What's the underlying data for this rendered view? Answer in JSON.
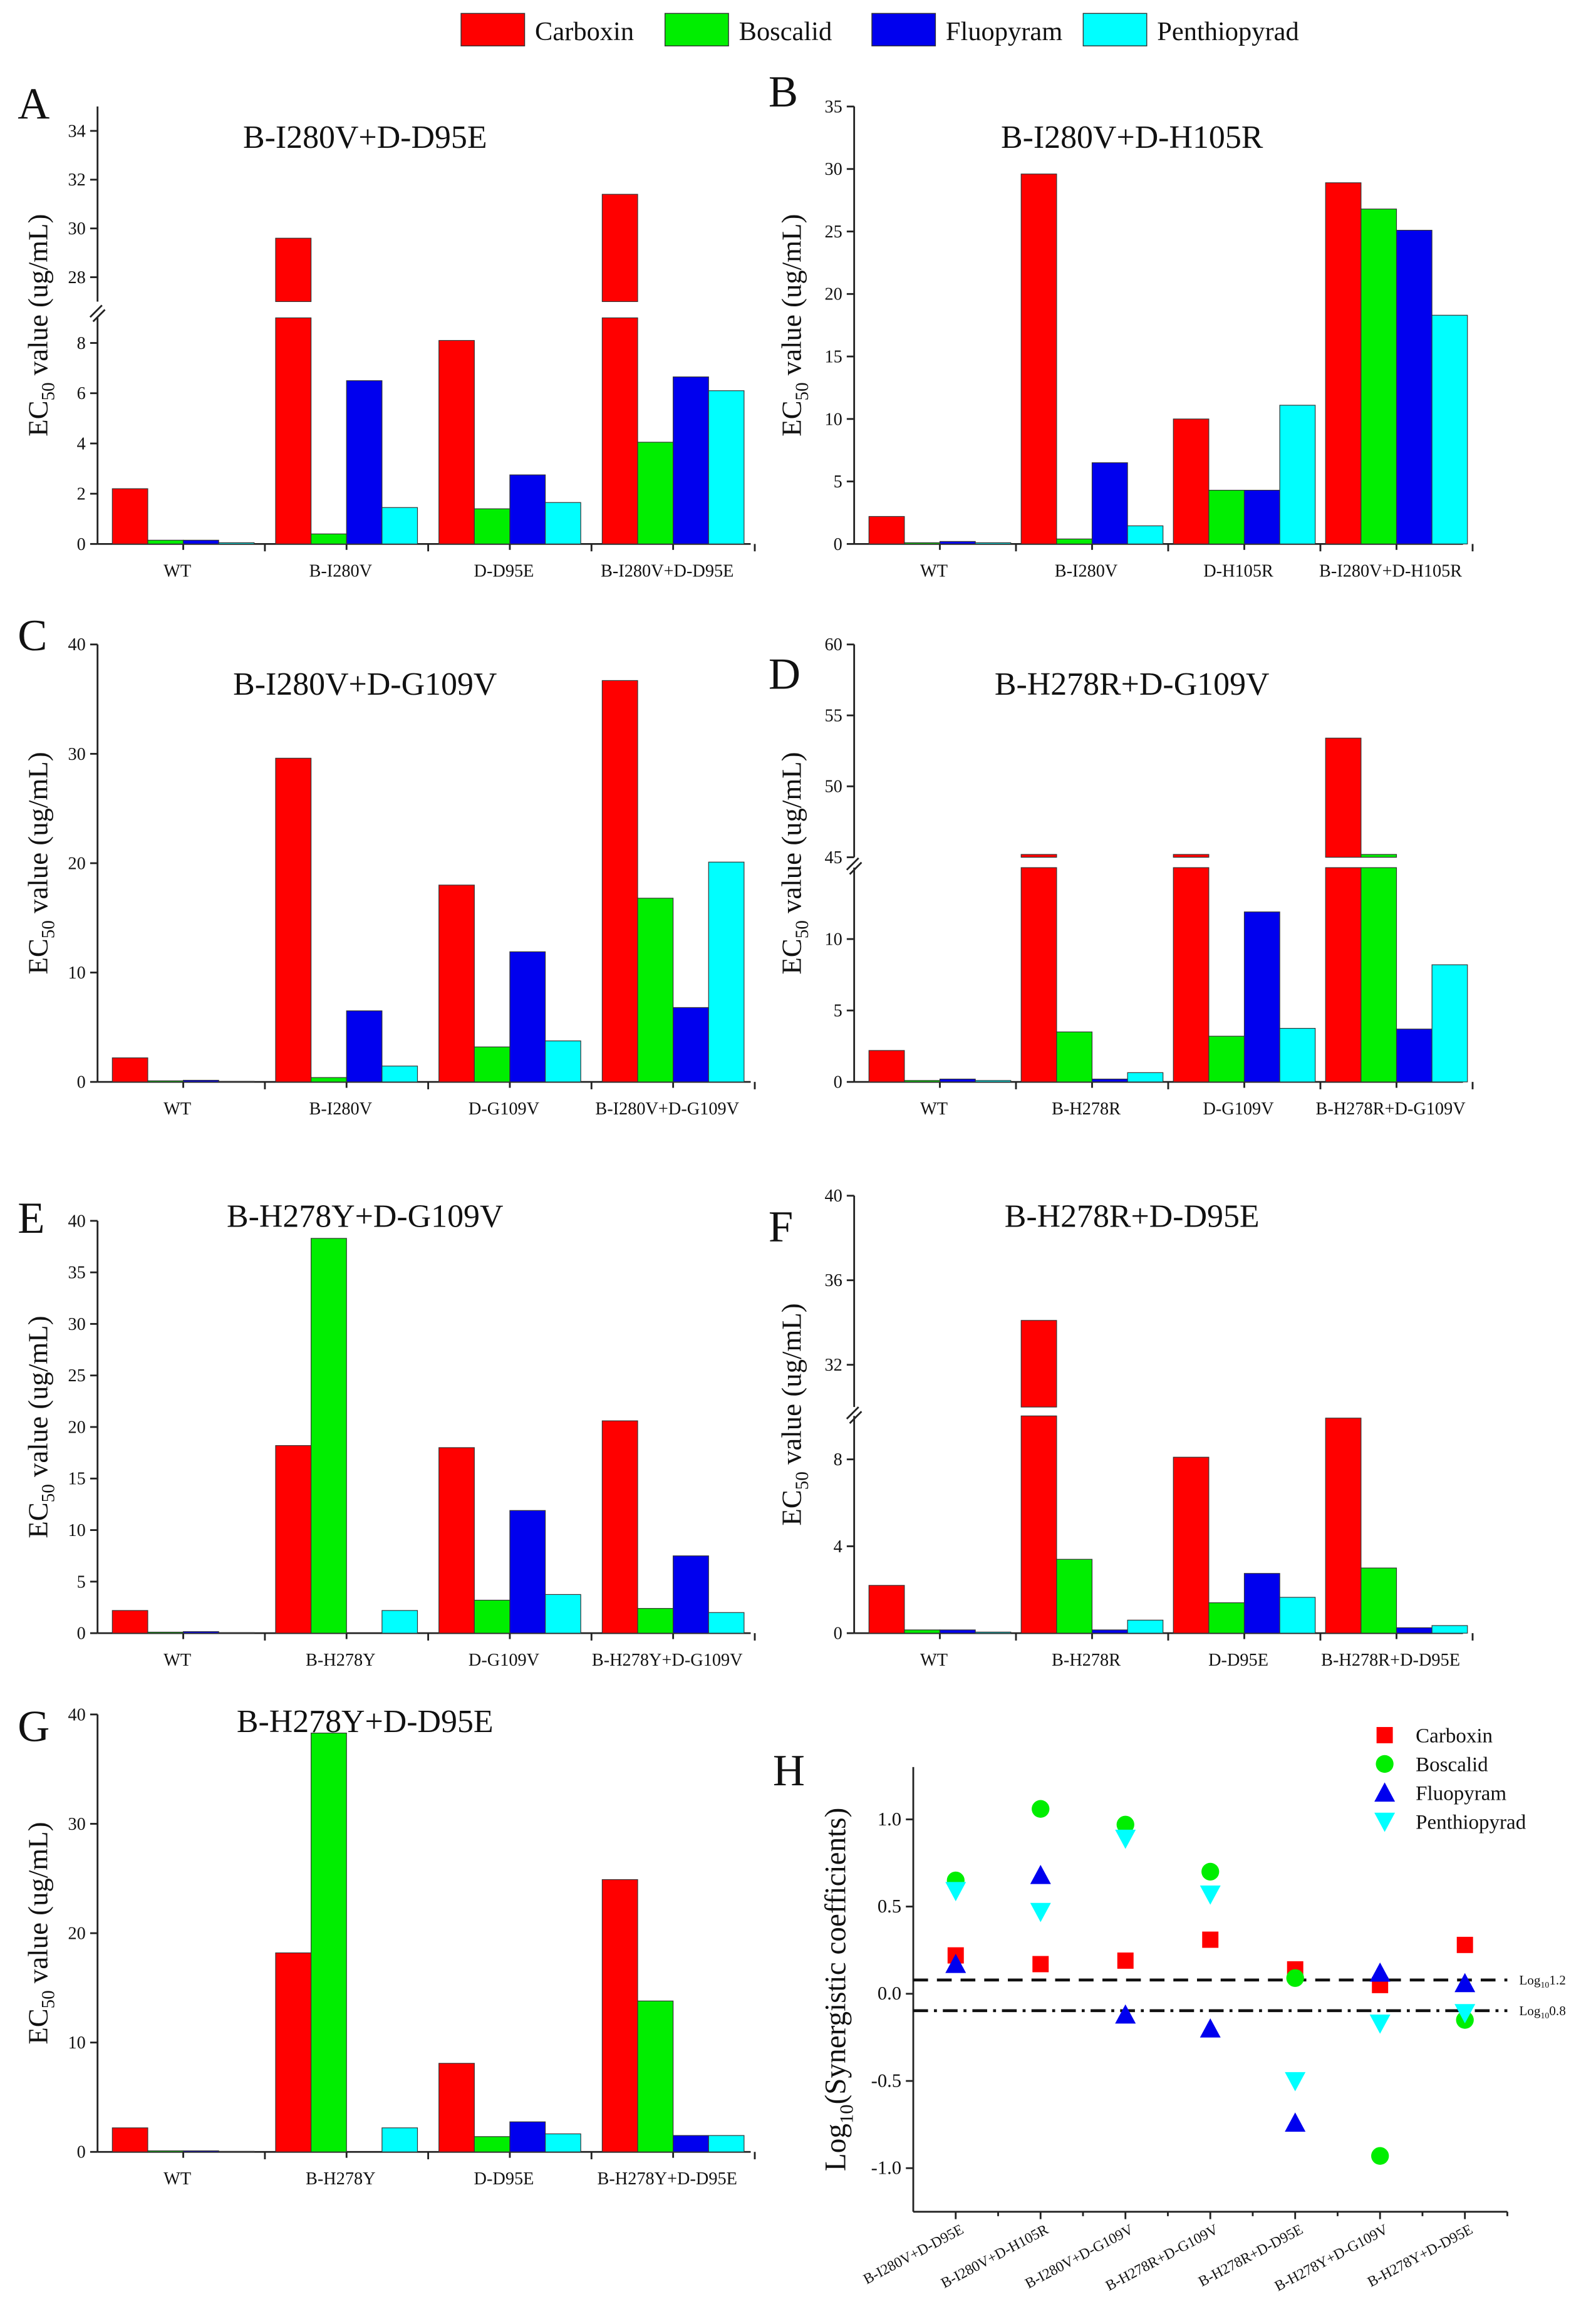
{
  "legend": {
    "items": [
      {
        "label": "Carboxin",
        "color": "#ff0000"
      },
      {
        "label": "Boscalid",
        "color": "#00ee00"
      },
      {
        "label": "Fluopyram",
        "color": "#0000ee"
      },
      {
        "label": "Penthiopyrad",
        "color": "#00ffff"
      }
    ]
  },
  "ylabel_bar": {
    "main": "EC",
    "sub": "50",
    "rest": " value (ug/mL)"
  },
  "chart_data": [
    {
      "panel": "A",
      "type": "bar",
      "title": "B-I280V+D-D95E",
      "categories": [
        "WT",
        "B-I280V",
        "D-D95E",
        "B-I280V+D-D95E"
      ],
      "y_segments": [
        [
          0,
          9
        ],
        [
          27,
          35
        ]
      ],
      "yticks": [
        [
          0,
          2,
          4,
          6,
          8
        ],
        [
          28,
          30,
          32,
          34
        ]
      ],
      "series": [
        {
          "name": "Carboxin",
          "values": [
            2.2,
            29.6,
            8.1,
            31.4
          ]
        },
        {
          "name": "Boscalid",
          "values": [
            0.15,
            0.4,
            1.4,
            4.05
          ]
        },
        {
          "name": "Fluopyram",
          "values": [
            0.15,
            6.5,
            2.75,
            6.65
          ]
        },
        {
          "name": "Penthiopyrad",
          "values": [
            0.05,
            1.45,
            1.65,
            6.1
          ]
        }
      ]
    },
    {
      "panel": "B",
      "type": "bar",
      "title": "B-I280V+D-H105R",
      "categories": [
        "WT",
        "B-I280V",
        "D-H105R",
        "B-I280V+D-H105R"
      ],
      "y_segments": [
        [
          0,
          35
        ]
      ],
      "yticks": [
        [
          0,
          5,
          10,
          15,
          20,
          25,
          30,
          35
        ]
      ],
      "series": [
        {
          "name": "Carboxin",
          "values": [
            2.2,
            29.6,
            10.0,
            28.9
          ]
        },
        {
          "name": "Boscalid",
          "values": [
            0.1,
            0.4,
            4.3,
            26.8
          ]
        },
        {
          "name": "Fluopyram",
          "values": [
            0.2,
            6.5,
            4.3,
            25.1
          ]
        },
        {
          "name": "Penthiopyrad",
          "values": [
            0.1,
            1.45,
            11.1,
            18.3
          ]
        }
      ]
    },
    {
      "panel": "C",
      "type": "bar",
      "title": "B-I280V+D-G109V",
      "categories": [
        "WT",
        "B-I280V",
        "D-G109V",
        "B-I280V+D-G109V"
      ],
      "y_segments": [
        [
          0,
          40
        ]
      ],
      "yticks": [
        [
          0,
          10,
          20,
          30,
          40
        ]
      ],
      "series": [
        {
          "name": "Carboxin",
          "values": [
            2.2,
            29.6,
            18.0,
            36.7
          ]
        },
        {
          "name": "Boscalid",
          "values": [
            0.1,
            0.4,
            3.2,
            16.8
          ]
        },
        {
          "name": "Fluopyram",
          "values": [
            0.15,
            6.5,
            11.9,
            6.8
          ]
        },
        {
          "name": "Penthiopyrad",
          "values": [
            0.05,
            1.45,
            3.75,
            20.1
          ]
        }
      ]
    },
    {
      "panel": "D",
      "type": "bar",
      "title": "B-H278R+D-G109V",
      "categories": [
        "WT",
        "B-H278R",
        "D-G109V",
        "B-H278R+D-G109V"
      ],
      "y_segments": [
        [
          0,
          15
        ],
        [
          45,
          60
        ]
      ],
      "yticks": [
        [
          0,
          5,
          10
        ],
        [
          45,
          50,
          55,
          60
        ]
      ],
      "series": [
        {
          "name": "Carboxin",
          "values": [
            2.2,
            45.2,
            45.2,
            53.4
          ]
        },
        {
          "name": "Boscalid",
          "values": [
            0.1,
            3.5,
            3.2,
            45.2
          ]
        },
        {
          "name": "Fluopyram",
          "values": [
            0.2,
            0.2,
            11.9,
            3.7
          ]
        },
        {
          "name": "Penthiopyrad",
          "values": [
            0.1,
            0.65,
            3.75,
            8.2
          ]
        }
      ]
    },
    {
      "panel": "E",
      "type": "bar",
      "title": "B-H278Y+D-G109V",
      "categories": [
        "WT",
        "B-H278Y",
        "D-G109V",
        "B-H278Y+D-G109V"
      ],
      "y_segments": [
        [
          0,
          40
        ]
      ],
      "yticks": [
        [
          0,
          5,
          10,
          15,
          20,
          25,
          30,
          35,
          40
        ]
      ],
      "series": [
        {
          "name": "Carboxin",
          "values": [
            2.2,
            18.2,
            18.0,
            20.6
          ]
        },
        {
          "name": "Boscalid",
          "values": [
            0.1,
            38.3,
            3.2,
            2.4
          ]
        },
        {
          "name": "Fluopyram",
          "values": [
            0.15,
            0,
            11.9,
            7.5
          ]
        },
        {
          "name": "Penthiopyrad",
          "values": [
            0.05,
            2.2,
            3.75,
            2.0
          ]
        }
      ]
    },
    {
      "panel": "F",
      "type": "bar",
      "title": "B-H278R+D-D95E",
      "categories": [
        "WT",
        "B-H278R",
        "D-D95E",
        "B-H278R+D-D95E"
      ],
      "y_segments": [
        [
          0,
          10
        ],
        [
          30,
          40
        ]
      ],
      "yticks": [
        [
          0,
          4,
          8
        ],
        [
          32,
          36,
          40
        ]
      ],
      "series": [
        {
          "name": "Carboxin",
          "values": [
            2.2,
            34.1,
            8.1,
            9.9
          ]
        },
        {
          "name": "Boscalid",
          "values": [
            0.15,
            3.4,
            1.4,
            3.0
          ]
        },
        {
          "name": "Fluopyram",
          "values": [
            0.15,
            0.15,
            2.75,
            0.25
          ]
        },
        {
          "name": "Penthiopyrad",
          "values": [
            0.05,
            0.6,
            1.65,
            0.35
          ]
        }
      ]
    },
    {
      "panel": "G",
      "type": "bar",
      "title": "B-H278Y+D-D95E",
      "categories": [
        "WT",
        "B-H278Y",
        "D-D95E",
        "B-H278Y+D-D95E"
      ],
      "y_segments": [
        [
          0,
          40
        ]
      ],
      "yticks": [
        [
          0,
          10,
          20,
          30,
          40
        ]
      ],
      "series": [
        {
          "name": "Carboxin",
          "values": [
            2.2,
            18.2,
            8.1,
            24.9
          ]
        },
        {
          "name": "Boscalid",
          "values": [
            0.1,
            38.3,
            1.4,
            13.8
          ]
        },
        {
          "name": "Fluopyram",
          "values": [
            0.1,
            0,
            2.75,
            1.5
          ]
        },
        {
          "name": "Penthiopyrad",
          "values": [
            0.05,
            2.2,
            1.65,
            1.5
          ]
        }
      ]
    },
    {
      "panel": "H",
      "type": "scatter",
      "categories": [
        "B-I280V+D-D95E",
        "B-I280V+D-H105R",
        "B-I280V+D-G109V",
        "B-H278R+D-G109V",
        "B-H278R+D-D95E",
        "B-H278Y+D-G109V",
        "B-H278Y+D-D95E"
      ],
      "ylabel": {
        "main": "Log",
        "sub": "10",
        "rest": "(Synergistic coefficients)"
      },
      "ylim": [
        -1.25,
        1.3
      ],
      "yticks": [
        "-1.0",
        "-0.5",
        "0.0",
        "0.5",
        "1.0"
      ],
      "legend_position": "top-right",
      "series": [
        {
          "name": "Carboxin",
          "marker": "square",
          "values": [
            0.22,
            0.17,
            0.19,
            0.31,
            0.14,
            0.05,
            0.28
          ]
        },
        {
          "name": "Boscalid",
          "marker": "circle",
          "values": [
            0.65,
            1.06,
            0.97,
            0.7,
            0.09,
            -0.93,
            -0.15
          ]
        },
        {
          "name": "Fluopyram",
          "marker": "triangle-up",
          "values": [
            0.17,
            0.68,
            -0.12,
            -0.2,
            -0.74,
            0.12,
            0.06
          ]
        },
        {
          "name": "Penthiopyrad",
          "marker": "triangle-down",
          "values": [
            0.59,
            0.47,
            0.89,
            0.57,
            -0.5,
            -0.17,
            -0.11
          ]
        }
      ],
      "reference_lines": [
        {
          "value": 0.079,
          "style": "dash",
          "label": {
            "main": "Log",
            "sub": "10",
            "rest": "1.2"
          }
        },
        {
          "value": -0.097,
          "style": "dash-dot",
          "label": {
            "main": "Log",
            "sub": "10",
            "rest": "0.8"
          }
        }
      ]
    }
  ]
}
